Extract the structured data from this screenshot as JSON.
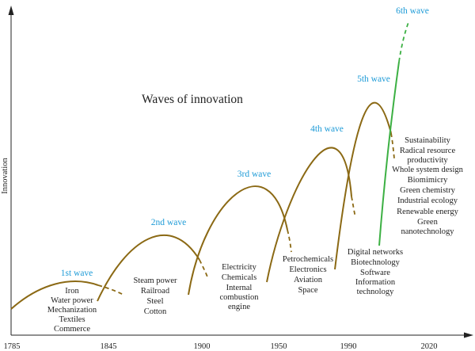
{
  "title": "Waves of innovation",
  "y_axis_label": "Innovation",
  "x_ticks": [
    "1785",
    "1845",
    "1900",
    "1950",
    "1990",
    "2020"
  ],
  "colors": {
    "curve": "#8B6914",
    "green_curve": "#3CB043",
    "wave_label": "#1E9BD7",
    "axis": "#222222"
  },
  "waves": [
    {
      "label": "1st wave",
      "innovations": [
        "Iron",
        "Water power",
        "Mechanization",
        "Textiles",
        "Commerce"
      ]
    },
    {
      "label": "2nd wave",
      "innovations": [
        "Steam power",
        "Railroad",
        "Steel",
        "Cotton"
      ]
    },
    {
      "label": "3rd wave",
      "innovations": [
        "Electricity",
        "Chemicals",
        "Internal",
        "combustion",
        "engine"
      ]
    },
    {
      "label": "4th wave",
      "innovations": [
        "Petrochemicals",
        "Electronics",
        "Aviation",
        "Space"
      ]
    },
    {
      "label": "5th wave",
      "innovations": [
        "Digital networks",
        "Biotechnology",
        "Software",
        "Information",
        "technology"
      ]
    },
    {
      "label": "6th wave",
      "innovations": [
        "Sustainability",
        "Radical resource",
        "productivity",
        "Whole system design",
        "Biomimicry",
        "Green chemistry",
        "Industrial ecology",
        "Renewable energy",
        "Green",
        "nanotechnology"
      ]
    }
  ]
}
